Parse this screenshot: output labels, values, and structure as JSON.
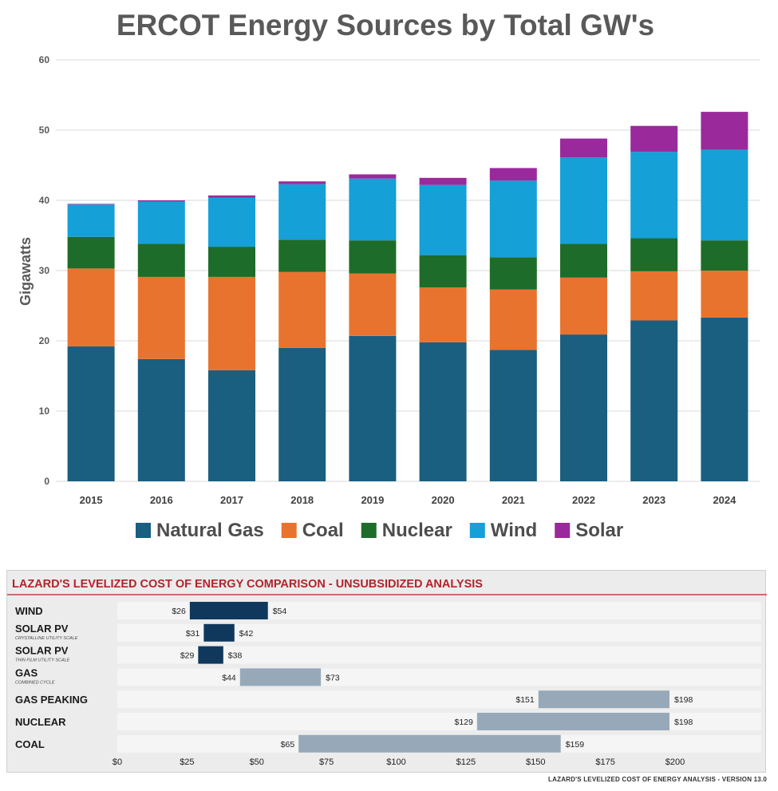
{
  "chart_data": [
    {
      "type": "bar",
      "stacked": true,
      "title": "ERCOT Energy Sources by Total GW's",
      "xlabel": "",
      "ylabel": "Gigawatts",
      "ylim": [
        0,
        60
      ],
      "yticks": [
        0,
        10,
        20,
        30,
        40,
        50,
        60
      ],
      "grid": true,
      "legend_position": "bottom",
      "categories": [
        "2015",
        "2016",
        "2017",
        "2018",
        "2019",
        "2020",
        "2021",
        "2022",
        "2023",
        "2024"
      ],
      "series": [
        {
          "name": "Natural Gas",
          "color": "#1a5e80",
          "values": [
            19.2,
            17.4,
            15.8,
            19.0,
            20.7,
            19.8,
            18.7,
            20.9,
            22.9,
            23.3
          ]
        },
        {
          "name": "Coal",
          "color": "#e8732f",
          "values": [
            11.1,
            11.7,
            13.3,
            10.8,
            8.9,
            7.8,
            8.6,
            8.1,
            7.0,
            6.7
          ]
        },
        {
          "name": "Nuclear",
          "color": "#1e6c29",
          "values": [
            4.5,
            4.7,
            4.3,
            4.6,
            4.7,
            4.6,
            4.6,
            4.8,
            4.7,
            4.3
          ]
        },
        {
          "name": "Wind",
          "color": "#15a0d8",
          "values": [
            4.6,
            6.0,
            7.0,
            7.9,
            8.8,
            10.0,
            10.9,
            12.3,
            12.3,
            12.9
          ]
        },
        {
          "name": "Solar",
          "color": "#9a2a9c",
          "values": [
            0.1,
            0.2,
            0.3,
            0.4,
            0.6,
            1.0,
            1.8,
            2.7,
            3.7,
            5.4
          ]
        }
      ]
    },
    {
      "type": "bar",
      "orientation": "horizontal",
      "range_bars": true,
      "title": "LAZARD'S LEVELIZED COST OF ENERGY COMPARISON - UNSUBSIDIZED ANALYSIS",
      "xlim": [
        0,
        225
      ],
      "xticks": [
        "$0",
        "$25",
        "$50",
        "$75",
        "$100",
        "$125",
        "$150",
        "$175",
        "$200"
      ],
      "xtick_values": [
        0,
        25,
        50,
        75,
        100,
        125,
        150,
        175,
        200
      ],
      "rows": [
        {
          "label": "WIND",
          "sublabel": "",
          "low": 26,
          "high": 54,
          "low_label": "$26",
          "high_label": "$54",
          "color": "#10385c"
        },
        {
          "label": "SOLAR PV",
          "sublabel": "CRYSTALLINE UTILITY SCALE",
          "low": 31,
          "high": 42,
          "low_label": "$31",
          "high_label": "$42",
          "color": "#10385c"
        },
        {
          "label": "SOLAR PV",
          "sublabel": "THIN FILM UTILITY SCALE",
          "low": 29,
          "high": 38,
          "low_label": "$29",
          "high_label": "$38",
          "color": "#10385c"
        },
        {
          "label": "GAS",
          "sublabel": "COMBINED CYCLE",
          "low": 44,
          "high": 73,
          "low_label": "$44",
          "high_label": "$73",
          "color": "#97a9b9"
        },
        {
          "label": "GAS PEAKING",
          "sublabel": "",
          "low": 151,
          "high": 198,
          "low_label": "$151",
          "high_label": "$198",
          "color": "#97a9b9"
        },
        {
          "label": "NUCLEAR",
          "sublabel": "",
          "low": 129,
          "high": 198,
          "low_label": "$129",
          "high_label": "$198",
          "color": "#97a9b9"
        },
        {
          "label": "COAL",
          "sublabel": "",
          "low": 65,
          "high": 159,
          "low_label": "$65",
          "high_label": "$159",
          "color": "#97a9b9"
        }
      ]
    }
  ],
  "footer": "LAZARD'S LEVELIZED COST OF ENERGY ANALYSIS - VERSION 13.0",
  "colors": {
    "title_red": "#b3232b",
    "gridline": "#d9d9d9",
    "track": "#f5f5f5"
  }
}
